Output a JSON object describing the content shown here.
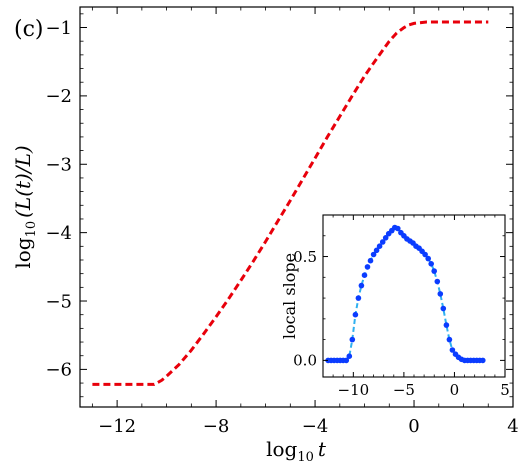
{
  "panel_label": "(c)",
  "chart_data": [
    {
      "type": "line",
      "xlabel_main": "log",
      "xlabel_sub": "10",
      "xlabel_var": "t",
      "ylabel_main": "log",
      "ylabel_sub": "10",
      "ylabel_var": "(L(t)/L)",
      "xlim": [
        -13.5,
        4
      ],
      "ylim": [
        -6.55,
        -0.7
      ],
      "xticks": [
        -12,
        -8,
        -4,
        0,
        4
      ],
      "xtick_labels": [
        "−12",
        "−8",
        "−4",
        "0",
        "4"
      ],
      "yticks": [
        -6,
        -5,
        -4,
        -3,
        -2,
        -1
      ],
      "ytick_labels": [
        "−6",
        "−5",
        "−4",
        "−3",
        "−2",
        "−1"
      ],
      "grid": false,
      "series": [
        {
          "color": "#e8000b",
          "style": "dashed",
          "x": [
            -13,
            -12,
            -11,
            -10.5,
            -10.2,
            -10,
            -9.5,
            -9,
            -8.5,
            -8,
            -7.5,
            -7,
            -6.5,
            -6,
            -5.5,
            -5,
            -4.5,
            -4,
            -3.5,
            -3,
            -2.5,
            -2,
            -1.5,
            -1,
            -0.7,
            -0.4,
            -0.2,
            0,
            0.5,
            1,
            2,
            3
          ],
          "y": [
            -6.22,
            -6.22,
            -6.22,
            -6.22,
            -6.16,
            -6.1,
            -5.93,
            -5.72,
            -5.48,
            -5.23,
            -4.97,
            -4.7,
            -4.42,
            -4.13,
            -3.83,
            -3.53,
            -3.22,
            -2.91,
            -2.6,
            -2.3,
            -2.0,
            -1.71,
            -1.45,
            -1.2,
            -1.08,
            -1.0,
            -0.96,
            -0.94,
            -0.92,
            -0.92,
            -0.92,
            -0.92
          ]
        }
      ]
    },
    {
      "type": "scatter",
      "inset": true,
      "ylabel": "local slope",
      "xlim": [
        -13,
        5
      ],
      "ylim": [
        -0.08,
        0.7
      ],
      "xticks": [
        -10,
        -5,
        0,
        5
      ],
      "xtick_labels": [
        "−10",
        "−5",
        "0",
        "5"
      ],
      "yticks": [
        0,
        0.5
      ],
      "ytick_labels": [
        "0.0",
        "0.5"
      ],
      "grid": false,
      "series": [
        {
          "marker_color": "#0b3cff",
          "line_color": "#2fb0f0",
          "x": [
            -12.5,
            -12.2,
            -11.9,
            -11.6,
            -11.3,
            -11.0,
            -10.7,
            -10.4,
            -10.1,
            -9.8,
            -9.5,
            -9.2,
            -8.9,
            -8.6,
            -8.3,
            -8.0,
            -7.7,
            -7.4,
            -7.1,
            -6.8,
            -6.5,
            -6.2,
            -5.9,
            -5.6,
            -5.3,
            -5.0,
            -4.7,
            -4.4,
            -4.1,
            -3.8,
            -3.5,
            -3.2,
            -2.9,
            -2.6,
            -2.3,
            -2.0,
            -1.7,
            -1.4,
            -1.1,
            -0.8,
            -0.5,
            -0.2,
            0.1,
            0.4,
            0.7,
            1.0,
            1.3,
            1.6,
            1.9,
            2.2,
            2.5,
            2.8
          ],
          "y": [
            0.0,
            0.0,
            0.0,
            0.0,
            0.0,
            0.0,
            0.0,
            0.02,
            0.1,
            0.22,
            0.3,
            0.36,
            0.41,
            0.45,
            0.48,
            0.51,
            0.53,
            0.55,
            0.57,
            0.59,
            0.61,
            0.625,
            0.64,
            0.635,
            0.615,
            0.6,
            0.585,
            0.575,
            0.565,
            0.55,
            0.54,
            0.525,
            0.51,
            0.49,
            0.465,
            0.43,
            0.38,
            0.32,
            0.25,
            0.17,
            0.1,
            0.05,
            0.03,
            0.015,
            0.005,
            0.0,
            0.0,
            0.0,
            0.0,
            0.0,
            0.0,
            0.0
          ]
        }
      ]
    }
  ]
}
